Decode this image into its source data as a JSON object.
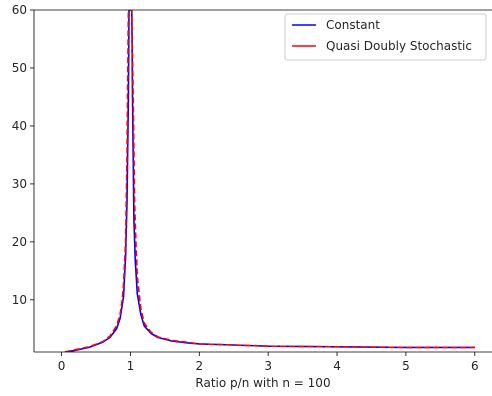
{
  "chart_data": {
    "type": "line",
    "xlabel": "Ratio p/n with n = 100",
    "ylabel": "",
    "xlim": [
      -0.4,
      6.25
    ],
    "ylim": [
      1,
      60
    ],
    "xticks": [
      0,
      1,
      2,
      3,
      4,
      5,
      6
    ],
    "yticks": [
      10,
      20,
      30,
      40,
      50,
      60
    ],
    "grid": false,
    "legend_position": "top-right",
    "series": [
      {
        "name": "Constant",
        "color": "#0000ff",
        "style": "solid",
        "x": [
          0.05,
          0.2,
          0.4,
          0.6,
          0.7,
          0.8,
          0.85,
          0.9,
          0.93,
          0.95,
          0.97,
          0.98,
          1.0,
          1.02,
          1.03,
          1.05,
          1.07,
          1.1,
          1.15,
          1.2,
          1.3,
          1.4,
          1.6,
          1.8,
          2.0,
          2.5,
          3.0,
          4.0,
          5.0,
          6.0
        ],
        "y": [
          1.0,
          1.3,
          1.8,
          2.7,
          3.5,
          5.0,
          6.8,
          10.5,
          17.5,
          27.0,
          45.0,
          60.0,
          60.0,
          60.0,
          45.0,
          24.0,
          17.0,
          11.0,
          7.5,
          5.5,
          4.2,
          3.5,
          2.9,
          2.6,
          2.4,
          2.2,
          2.0,
          1.9,
          1.8,
          1.8
        ]
      },
      {
        "name": "Quasi Doubly Stochastic",
        "color": "#ff0000",
        "style": "dashed",
        "x": [
          0.05,
          0.2,
          0.4,
          0.6,
          0.7,
          0.8,
          0.85,
          0.88,
          0.9,
          0.93,
          0.95,
          0.97,
          1.0,
          1.02,
          1.04,
          1.06,
          1.08,
          1.1,
          1.15,
          1.2,
          1.3,
          1.4,
          1.6,
          1.8,
          2.0,
          2.5,
          3.0,
          4.0,
          5.0,
          6.0
        ],
        "y": [
          1.0,
          1.4,
          1.9,
          2.8,
          3.7,
          5.5,
          7.5,
          10.0,
          12.5,
          20.0,
          35.0,
          60.0,
          60.0,
          60.0,
          45.0,
          27.0,
          20.0,
          14.0,
          8.5,
          6.0,
          4.4,
          3.6,
          3.0,
          2.7,
          2.4,
          2.2,
          2.0,
          1.9,
          1.8,
          1.8
        ]
      }
    ]
  }
}
